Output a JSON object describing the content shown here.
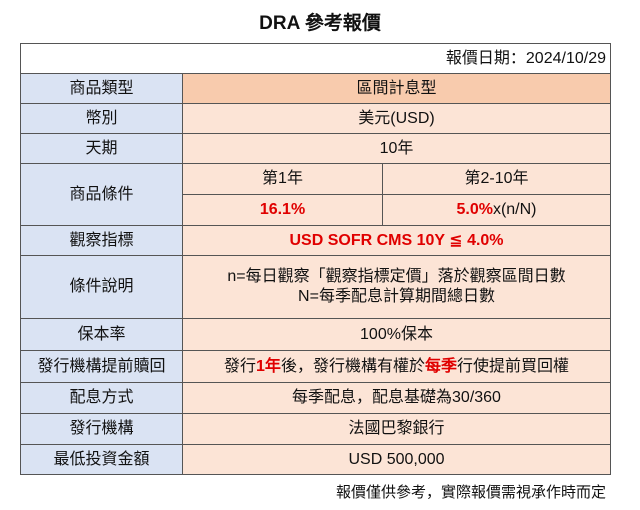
{
  "title": "DRA 參考報價",
  "date_line": "報價日期：2024/10/29",
  "rows": [
    {
      "label": "商品類型",
      "value": "區間計息型"
    },
    {
      "label": "幣別",
      "value": "美元(USD)"
    },
    {
      "label": "天期",
      "value": "10年"
    },
    {
      "label": "商品條件",
      "periods": [
        "第1年",
        "第2-10年"
      ],
      "rate_1": "16.1%",
      "rate_2": [
        "5.0%",
        "x(n/N)"
      ]
    },
    {
      "label": "觀察指標",
      "value": "USD SOFR CMS 10Y ≦ 4.0%"
    },
    {
      "label": "條件說明",
      "lines": [
        "n=每日觀察「觀察指標定價」落於觀察區間日數",
        "N=每季配息計算期間總日數"
      ]
    },
    {
      "label": "保本率",
      "value": "100%保本"
    },
    {
      "label": "發行機構提前贖回",
      "parts": [
        "發行",
        "1年",
        "後，發行機構有權於",
        "每季",
        "行使提前買回權"
      ]
    },
    {
      "label": "配息方式",
      "value": "每季配息，配息基礎為30/360"
    },
    {
      "label": "發行機構",
      "value": "法國巴黎銀行"
    },
    {
      "label": "最低投資金額",
      "value": "USD 500,000"
    }
  ],
  "footnote": "報價僅供參考，實際報價需視承作時而定"
}
